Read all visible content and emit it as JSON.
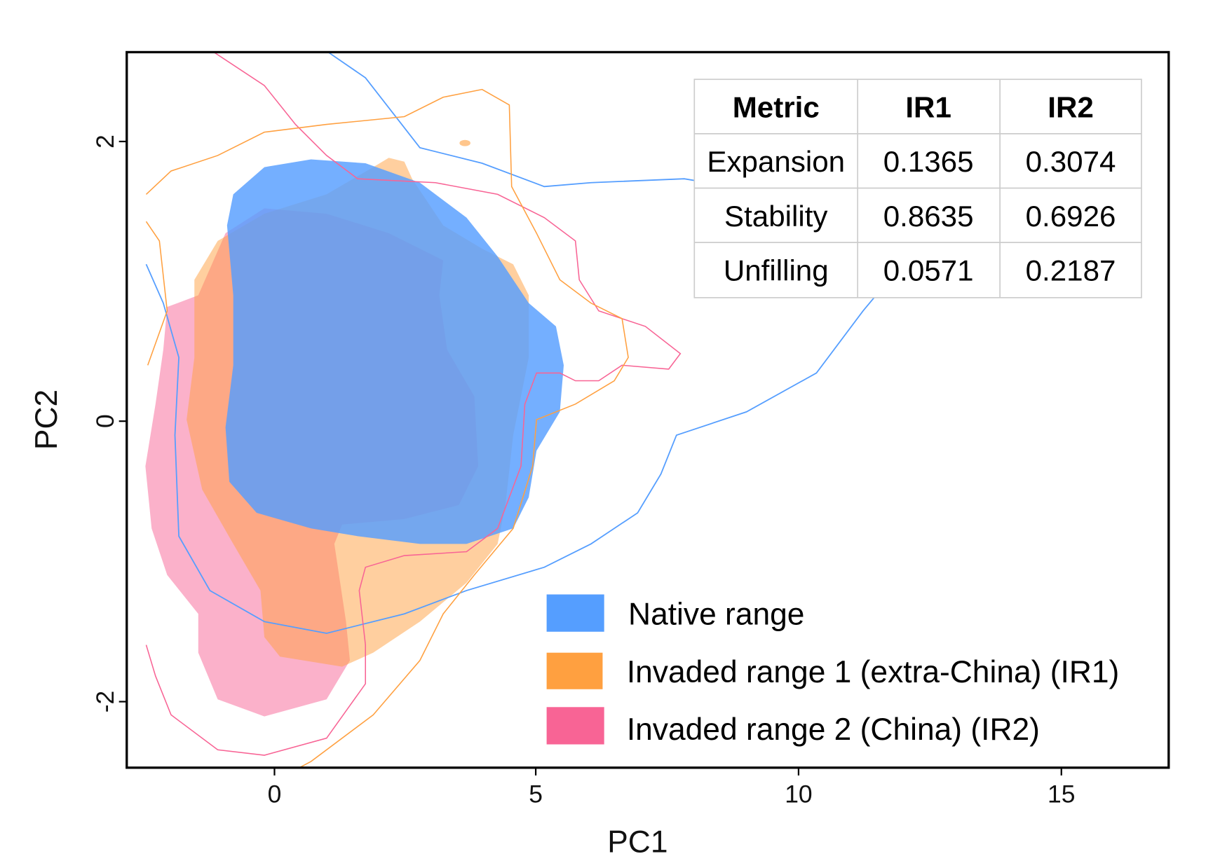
{
  "chart_data": {
    "type": "area",
    "subtype": "density contour niche plot",
    "xlabel": "PC1",
    "ylabel": "PC2",
    "xlim": [
      -2.8,
      17.1
    ],
    "ylim": [
      -2.5,
      2.6
    ],
    "xticks": [
      "0",
      "5",
      "10",
      "15"
    ],
    "yticks": [
      "-2",
      "0",
      "2"
    ],
    "grid": false,
    "legend_position": "bottom-right",
    "series": [
      {
        "name": "Native range",
        "color": "#559eff"
      },
      {
        "name": "Invaded range 1 (extra-China) (IR1)",
        "color": "#ffa040"
      },
      {
        "name": "Invaded range 2 (China) (IR2)",
        "color": "#f86495"
      }
    ],
    "table": {
      "headers": [
        "Metric",
        "IR1",
        "IR2"
      ],
      "rows": [
        [
          "Expansion",
          "0.1365",
          "0.3074"
        ],
        [
          "Stability",
          "0.8635",
          "0.6926"
        ],
        [
          "Unfilling",
          "0.0571",
          "0.2187"
        ]
      ]
    }
  }
}
